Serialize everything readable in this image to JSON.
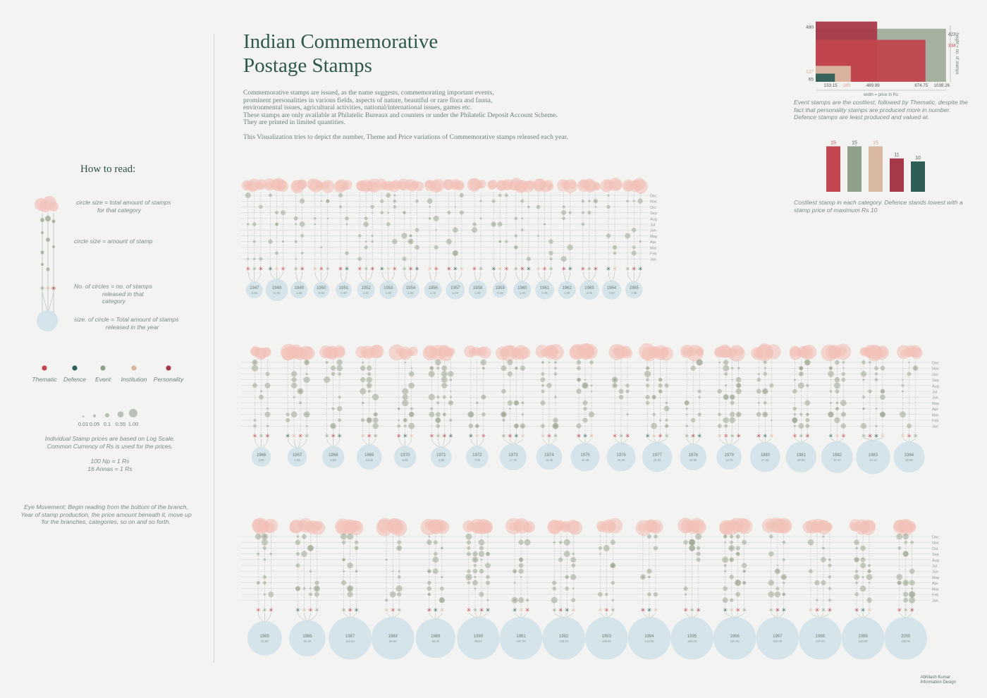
{
  "title_line1": "Indian Commemorative",
  "title_line2": "Postage Stamps",
  "intro": {
    "lines": [
      "Commemorative stamps are issued, as the name suggests, commemorating important events,",
      "prominent personalities in various fields, aspects of nature, beautiful or rare flora and fauna,",
      "environmental issues, agricultural activities, national/international issues, games etc.",
      "These stamps are only available at Philatelic Bureaux and counters or under the Philatelic Deposit Account Scheme.",
      "They are printed in limited quantities."
    ],
    "purpose": "This Visualization tries to depict the number, Theme and Price variations of Commemorative stamps released each year."
  },
  "howto": {
    "title": "How to read:",
    "note1_line1": "circle size = total amount of stamps",
    "note1_line2": "for that category",
    "note2": "circle size = amount of stamp",
    "note3_line1": "No. of circles = no. of stamps",
    "note3_line2": "released in that",
    "note3_line3": "category",
    "note4_line1": "size. of circle = Total amount of stamps",
    "note4_line2": "released in the year"
  },
  "categories": [
    {
      "name": "Thematic",
      "color": "#c2464f"
    },
    {
      "name": "Defence",
      "color": "#2f5e58"
    },
    {
      "name": "Event",
      "color": "#8fa08a"
    },
    {
      "name": "Institution",
      "color": "#d9b8a2"
    },
    {
      "name": "Personality",
      "color": "#a8394a"
    }
  ],
  "scale_legend": {
    "values": [
      "0.01",
      "0.05",
      "0.1",
      "0.55",
      "1.00"
    ],
    "note_line1": "Individual Stamp prices are based on Log Scale.",
    "note_line2": "Common Currency of Rs is used for the prices.",
    "conv1": "100 Np = 1 Rs",
    "conv2": "16 Annas = 1 Rs"
  },
  "eye_note": [
    "Eye Movement: Begin reading from the bottom of the branch,",
    "Year of stamp production, the price amount beneath it, move up",
    "for the branches, categories, so on and so forth."
  ],
  "months": [
    "Dec",
    "Nov",
    "Oct",
    "Sep",
    "Aug",
    "Jul",
    "Jun",
    "May",
    "Apr",
    "Mar",
    "Feb",
    "Jan"
  ],
  "rows": [
    {
      "years": [
        "1947",
        "1948",
        "1949",
        "1950",
        "1951",
        "1952",
        "1953",
        "1954",
        "1956",
        "1957",
        "1958",
        "1959",
        "1960",
        "1961",
        "1962",
        "1963",
        "1964",
        "1965"
      ],
      "totals": [
        "0.80",
        "11.81",
        "1.06",
        "0.40",
        "0.40",
        "1.51",
        "1.60",
        "1.06",
        "1.15",
        "2.40",
        "1.90",
        "0.15",
        "1.40",
        "2.45",
        "1.30",
        "3.36",
        "2.80",
        "1.05"
      ]
    },
    {
      "years": [
        "1966",
        "1967",
        "1968",
        "1969",
        "1970",
        "1971",
        "1972",
        "1973",
        "1974",
        "1975",
        "1976",
        "1977",
        "1978",
        "1979",
        "1980",
        "1981",
        "1982",
        "1983",
        "1984"
      ],
      "totals": [
        "3.05",
        "2.95",
        "6.85",
        "12.85",
        "6.85",
        "4.95",
        "7.55",
        "17.00",
        "14.45",
        "22.35",
        "22.60",
        "26.25",
        "16.65",
        "12.75",
        "27.20",
        "28.80",
        "32.10",
        "42.10",
        "30.00"
      ]
    },
    {
      "years": [
        "1985",
        "1986",
        "1987",
        "1988",
        "1989",
        "1990",
        "1991",
        "1992",
        "1993",
        "1994",
        "1995",
        "1996",
        "1997",
        "1998",
        "1999",
        "2000"
      ],
      "totals": [
        "43.00",
        "51.30",
        "116.50",
        "86.50",
        "68.20",
        "88.50",
        "237.00",
        "136.20",
        "108.00",
        "142.50",
        "150.00",
        "131.00",
        "209.00",
        "237.00",
        "140.00",
        "282.00"
      ]
    }
  ],
  "chart_data": [
    {
      "type": "bar",
      "title": "",
      "xlabel": "width = price in Rs",
      "ylabel": "height = no. of stamps",
      "categories": [
        "Thematic",
        "Defence",
        "Event",
        "Institution",
        "Personality"
      ],
      "series": [
        {
          "name": "no. of stamps",
          "values": [
            334,
            65,
            423,
            127,
            480
          ]
        },
        {
          "name": "price in Rs",
          "values": [
            874.75,
            153.15,
            1038.26,
            280,
            489.99
          ]
        }
      ],
      "note": "Event stamps are the costliest, followed by Thematic, despite the fact that personality stamps are produced more in number. Defence stamps are least produced and valued at."
    },
    {
      "type": "bar",
      "title": "",
      "categories": [
        "Personality",
        "Event",
        "Institution",
        "Thematic",
        "Defence"
      ],
      "values": [
        15,
        15,
        15,
        11,
        10
      ],
      "ylim": [
        0,
        15
      ],
      "note": "Costliest stamp in each category. Defence stands lowest with a stamp price of maximum Rs 10"
    }
  ],
  "credit_line1": "Abhilash Kumar",
  "credit_line2": "Information Design"
}
